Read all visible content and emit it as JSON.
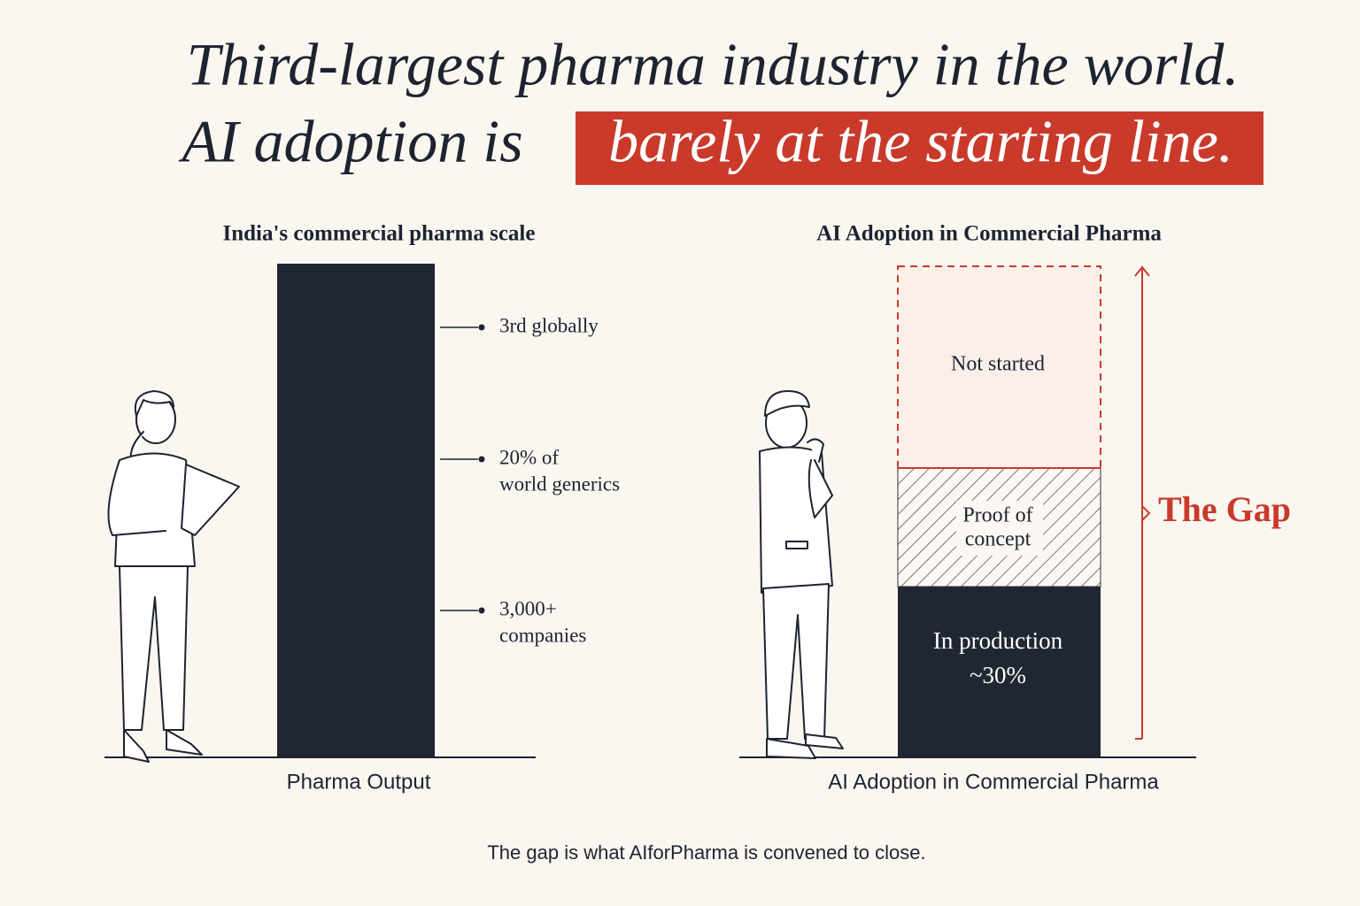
{
  "title": {
    "line1": "Third-largest pharma industry in the world.",
    "line2_lead": "AI adoption is",
    "line2_highlight": "barely at the starting line."
  },
  "left_panel": {
    "title": "India's commercial pharma scale",
    "annotations": [
      [
        "3rd globally"
      ],
      [
        "20% of",
        "world generics"
      ],
      [
        "3,000+",
        "companies"
      ]
    ],
    "axis_label": "Pharma Output"
  },
  "right_panel": {
    "title": "AI Adoption in Commercial Pharma",
    "segments": {
      "not_started": [
        "Not started"
      ],
      "proof_of_concept": [
        "Proof of",
        "concept"
      ],
      "in_production": [
        "In production",
        "~30%"
      ]
    },
    "gap_label": "The Gap",
    "axis_label": "AI Adoption in Commercial Pharma"
  },
  "caption": "The gap is what AIforPharma is convened to close."
}
